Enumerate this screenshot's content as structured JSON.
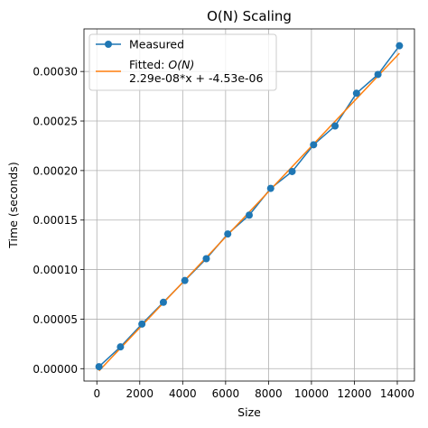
{
  "chart_data": {
    "type": "line",
    "title": "O(N) Scaling",
    "xlabel": "Size",
    "ylabel": "Time (seconds)",
    "xlim": [
      -600,
      14800
    ],
    "ylim": [
      -1.25e-05,
      0.000343
    ],
    "grid": true,
    "legend_position": "top-left",
    "x_ticks": [
      0,
      2000,
      4000,
      6000,
      8000,
      10000,
      12000,
      14000
    ],
    "x_tick_labels": [
      "0",
      "2000",
      "4000",
      "6000",
      "8000",
      "10000",
      "12000",
      "14000"
    ],
    "y_ticks": [
      0,
      5e-05,
      0.0001,
      0.00015,
      0.0002,
      0.00025,
      0.0003
    ],
    "y_tick_labels": [
      "0.00000",
      "0.00005",
      "0.00010",
      "0.00015",
      "0.00020",
      "0.00025",
      "0.00030"
    ],
    "series": [
      {
        "name": "Measured",
        "style": "line-markers",
        "color": "#1f77b4",
        "x": [
          100,
          1100,
          2100,
          3100,
          4100,
          5100,
          6100,
          7100,
          8100,
          9100,
          10100,
          11100,
          12100,
          13100,
          14100
        ],
        "y": [
          2e-06,
          2.2e-05,
          4.5e-05,
          6.7e-05,
          8.9e-05,
          0.000111,
          0.000136,
          0.000155,
          0.000182,
          0.000199,
          0.000226,
          0.000245,
          0.000278,
          0.000297,
          0.000326
        ]
      },
      {
        "name": "Fitted: O(N)",
        "name_prefix": "Fitted: ",
        "name_math": "O(N)",
        "equation": "2.29e-08*x + -4.53e-06",
        "style": "line",
        "color": "#ff7f0e",
        "slope": 2.29e-08,
        "intercept": -4.53e-06,
        "x_range": [
          100,
          14100
        ]
      }
    ]
  }
}
